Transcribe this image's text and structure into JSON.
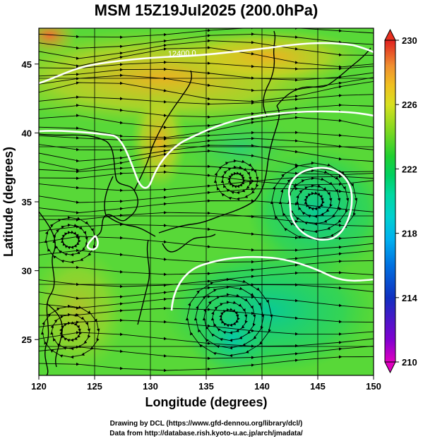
{
  "title": "MSM 15Z19Jul2025 (200.0hPa)",
  "x_axis": {
    "label": "Longitude (degrees)",
    "ticks": [
      120,
      125,
      130,
      135,
      140,
      145,
      150
    ],
    "range": [
      120,
      150
    ]
  },
  "y_axis": {
    "label": "Latitude (degrees)",
    "ticks": [
      25,
      30,
      35,
      40,
      45
    ],
    "range": [
      22.4,
      47.6
    ]
  },
  "colorbar": {
    "ticks": [
      210,
      214,
      218,
      222,
      226,
      230
    ],
    "range": [
      210,
      230
    ],
    "colors": [
      "#e000c0",
      "#8000d0",
      "#1030c0",
      "#0070e0",
      "#00b0f0",
      "#00d0d0",
      "#00d8a0",
      "#00d060",
      "#20d030",
      "#80d820",
      "#d8e020",
      "#f0c020",
      "#f09030",
      "#f05030",
      "#e02020"
    ]
  },
  "contour_label": "12400.0",
  "credits": [
    "Drawing by DCL (https://www.gfd-dennou.org/library/dcl/)",
    "Data from http://database.rish.kyoto-u.ac.jp/arch/jmadata/"
  ]
}
